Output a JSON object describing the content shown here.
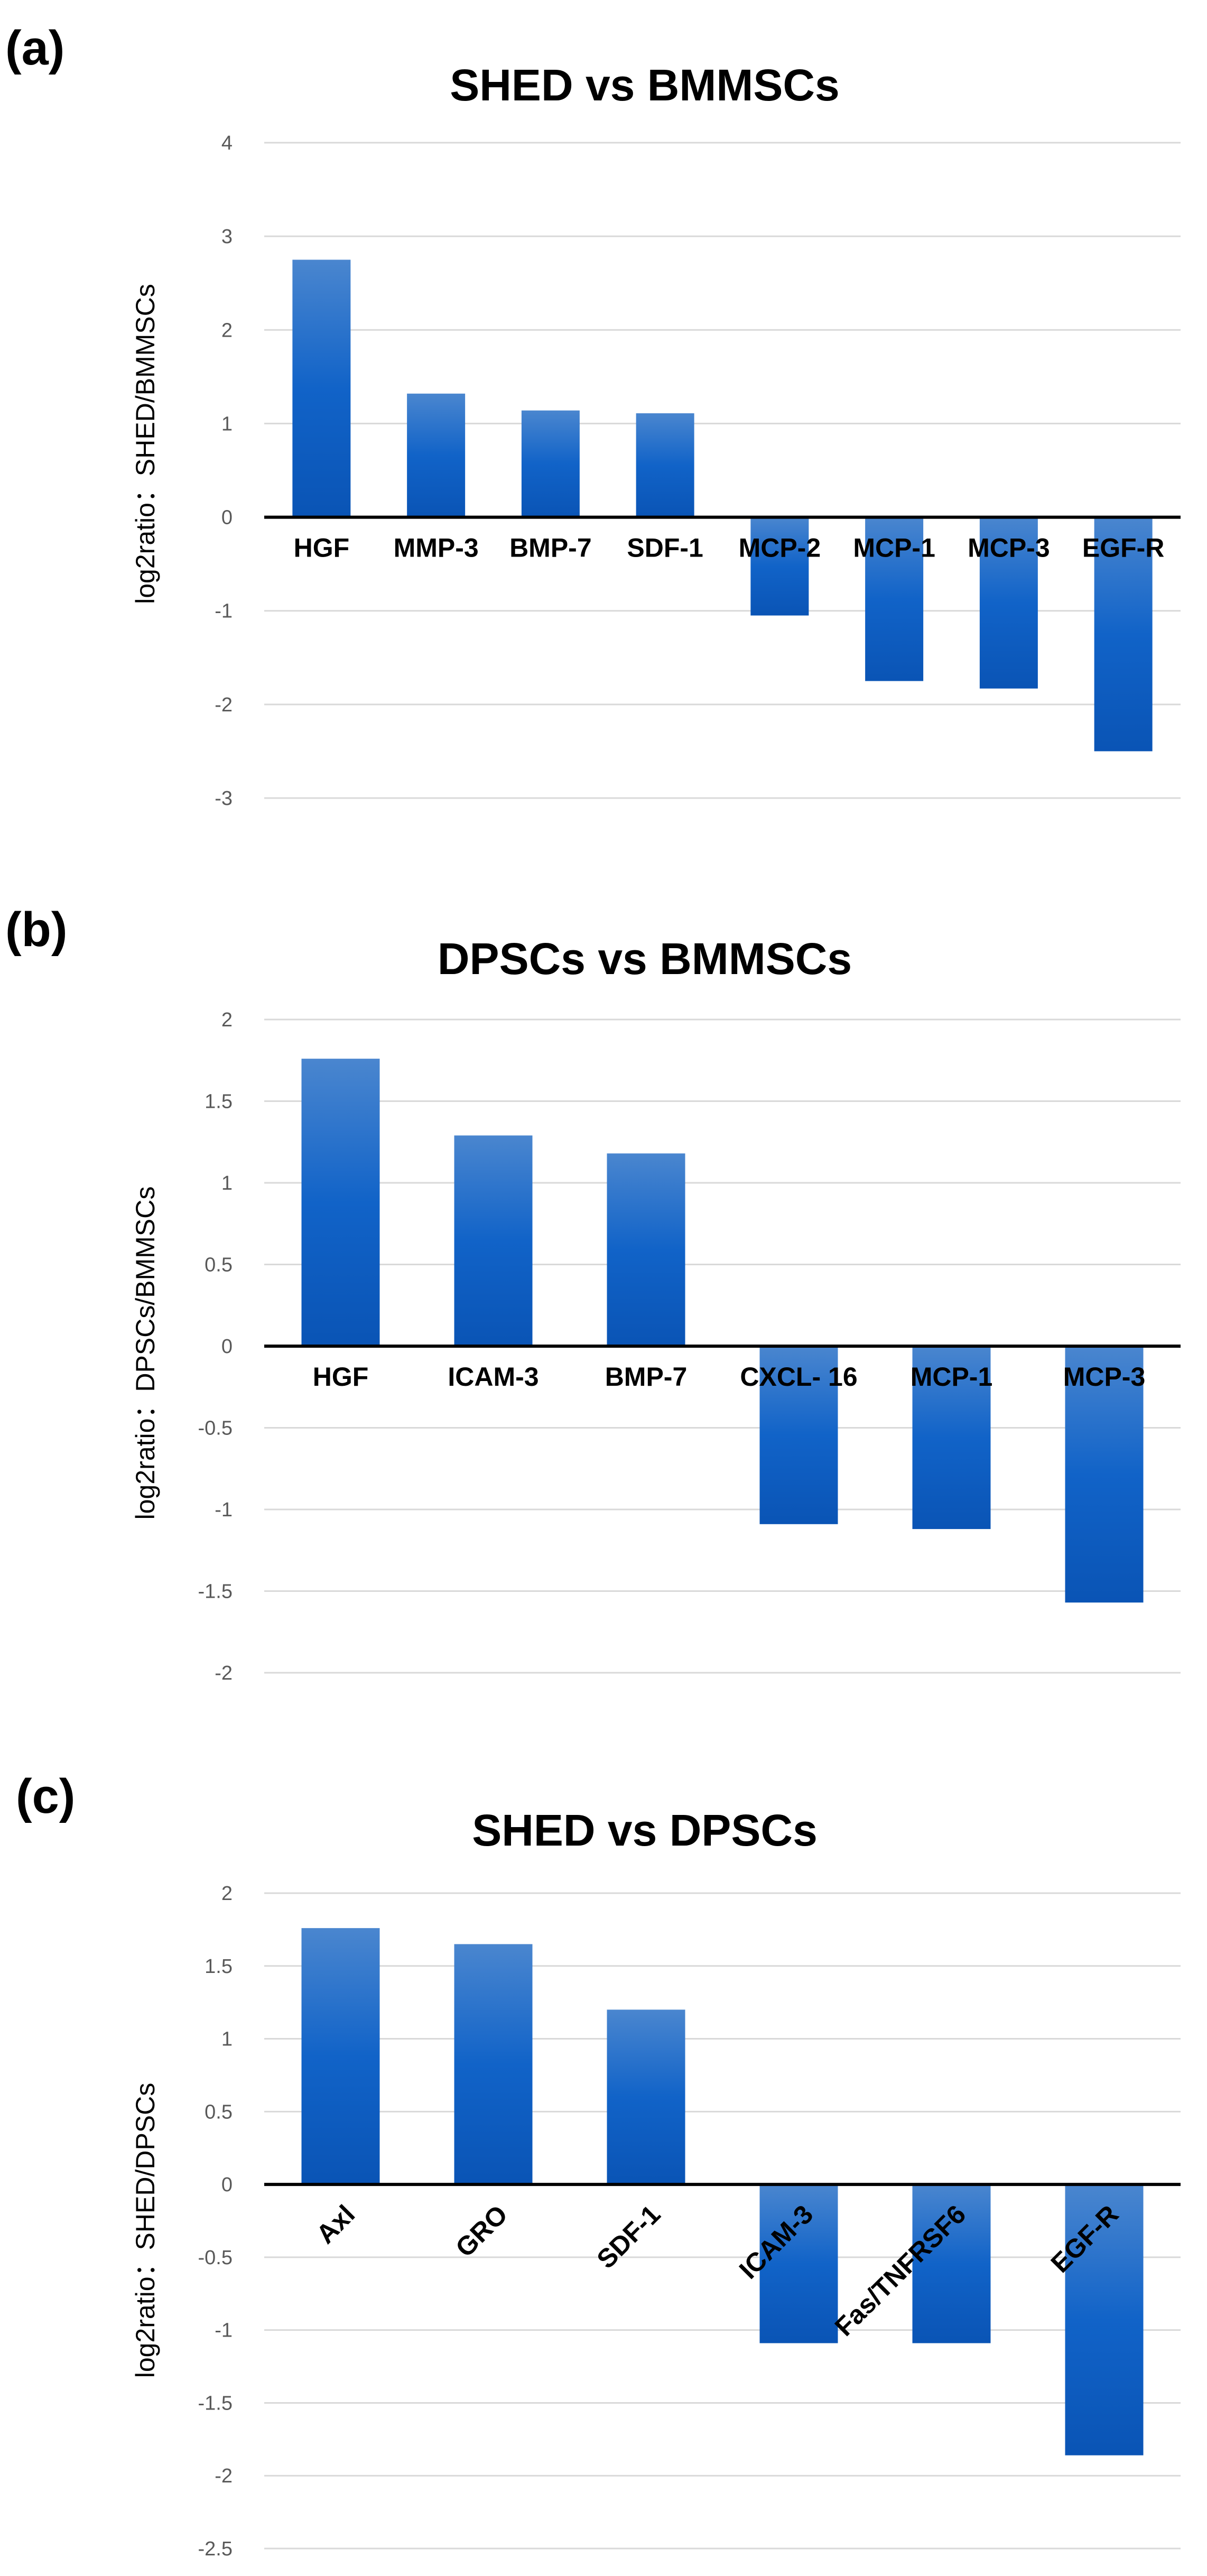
{
  "chart_data": [
    {
      "type": "bar",
      "panel_label": "(a)",
      "title": "SHED vs BMMSCs",
      "xlabel": "",
      "ylabel": "log2ratio：SHED/BMMSCs",
      "ylim": [
        -3,
        4
      ],
      "yticks": [
        4,
        3,
        2,
        1,
        0,
        -1,
        -2,
        -3
      ],
      "categories": [
        "HGF",
        "MMP-3",
        "BMP-7",
        "SDF-1",
        "MCP-2",
        "MCP-1",
        "MCP-3",
        "EGF-R"
      ],
      "values": [
        2.75,
        1.32,
        1.14,
        1.11,
        -1.05,
        -1.75,
        -1.83,
        -2.5
      ],
      "bar_color": "#1565C0",
      "grid": true,
      "rotate_labels": false
    },
    {
      "type": "bar",
      "panel_label": "(b)",
      "title": "DPSCs vs BMMSCs",
      "xlabel": "",
      "ylabel": "log2ratio：DPSCs/BMMSCs",
      "ylim": [
        -2,
        2
      ],
      "yticks": [
        2,
        1.5,
        1,
        0.5,
        0,
        -0.5,
        -1,
        -1.5,
        -2
      ],
      "categories": [
        "HGF",
        "ICAM-3",
        "BMP-7",
        "CXCL- 16",
        "MCP-1",
        "MCP-3"
      ],
      "values": [
        1.76,
        1.29,
        1.18,
        -1.09,
        -1.12,
        -1.57
      ],
      "bar_color": "#1565C0",
      "grid": true,
      "rotate_labels": false
    },
    {
      "type": "bar",
      "panel_label": "(c)",
      "title": "SHED vs DPSCs",
      "xlabel": "",
      "ylabel": "log2ratio：SHED/DPSCs",
      "ylim": [
        -2.5,
        2
      ],
      "yticks": [
        2,
        1.5,
        1,
        0.5,
        0,
        -0.5,
        -1,
        -1.5,
        -2,
        -2.5
      ],
      "categories": [
        "Axl",
        "GRO",
        "SDF-1",
        "ICAM-3",
        "Fas/TNFRSF6",
        "EGF-R"
      ],
      "values": [
        1.76,
        1.65,
        1.2,
        -1.09,
        -1.09,
        -1.86
      ],
      "bar_color": "#1565C0",
      "grid": true,
      "rotate_labels": true
    }
  ]
}
